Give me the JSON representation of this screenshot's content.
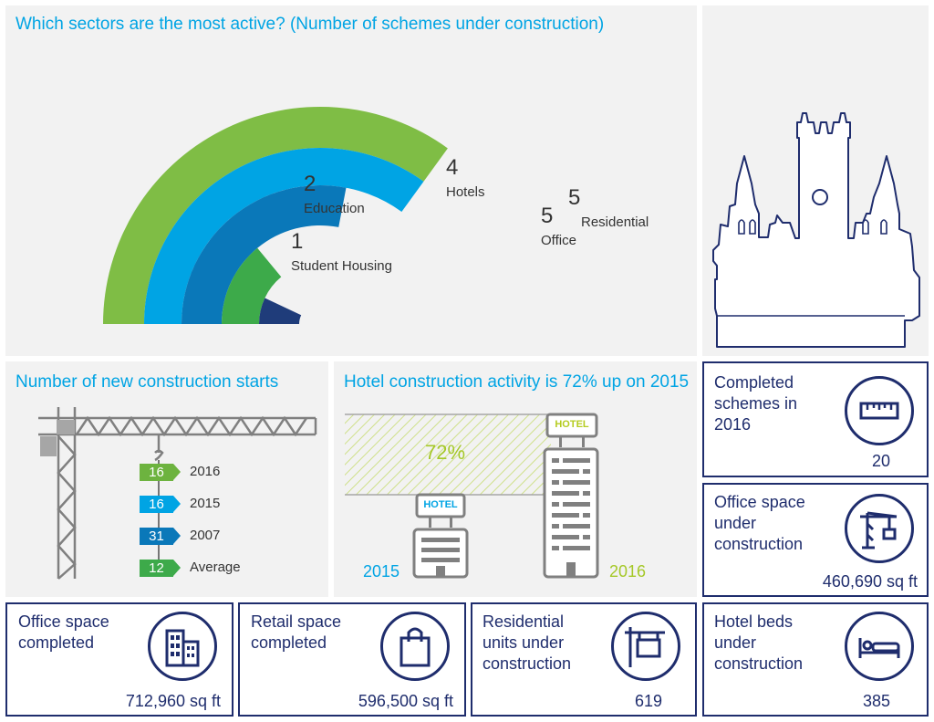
{
  "sectors_panel": {
    "title": "Which sectors are the most active? (Number of schemes under construction)"
  },
  "chart_data": [
    {
      "type": "bar",
      "title": "Which sectors are the most active? (Number of schemes under construction)",
      "categories": [
        "Residential",
        "Office",
        "Hotels",
        "Education",
        "Student Housing"
      ],
      "values": [
        5,
        5,
        4,
        2,
        1
      ],
      "max": 5,
      "colors": [
        "#7fbd45",
        "#00a4e4",
        "#0a78b9",
        "#3daa4a",
        "#1f3c7a"
      ]
    },
    {
      "type": "bar",
      "title": "Number of new construction starts",
      "categories": [
        "2016",
        "2015",
        "2007",
        "Average"
      ],
      "values": [
        16,
        16,
        31,
        12
      ],
      "colors": [
        "#6db33f",
        "#00a4e4",
        "#0a78b9",
        "#3daa4a"
      ]
    },
    {
      "type": "bar",
      "title": "Hotel construction activity is 72% up on 2015",
      "categories": [
        "2015",
        "2016"
      ],
      "annotation": "72%"
    }
  ],
  "starts_panel": {
    "title": "Number of new construction starts"
  },
  "hotel_panel": {
    "title": "Hotel construction activity is 72% up on 2015",
    "sign_text": "HOTEL",
    "pct": "72%",
    "year_left": "2015",
    "year_right": "2016"
  },
  "stats": {
    "completed_schemes": {
      "label": "Completed schemes in 2016",
      "value": "20",
      "icon": "ruler-icon"
    },
    "office_under_construction": {
      "label": "Office space under construction",
      "value": "460,690 sq ft",
      "icon": "crane-icon"
    },
    "office_completed": {
      "label": "Office space completed",
      "value": "712,960 sq ft",
      "icon": "building-icon"
    },
    "retail_completed": {
      "label": "Retail space completed",
      "value": "596,500 sq ft",
      "icon": "shopping-bag-icon"
    },
    "residential_units": {
      "label": "Residential units under construction",
      "value": "619",
      "icon": "signpost-icon"
    },
    "hotel_beds": {
      "label": "Hotel beds under construction",
      "value": "385",
      "icon": "bed-icon"
    }
  },
  "illustration": {
    "icon": "cathedral-icon"
  }
}
